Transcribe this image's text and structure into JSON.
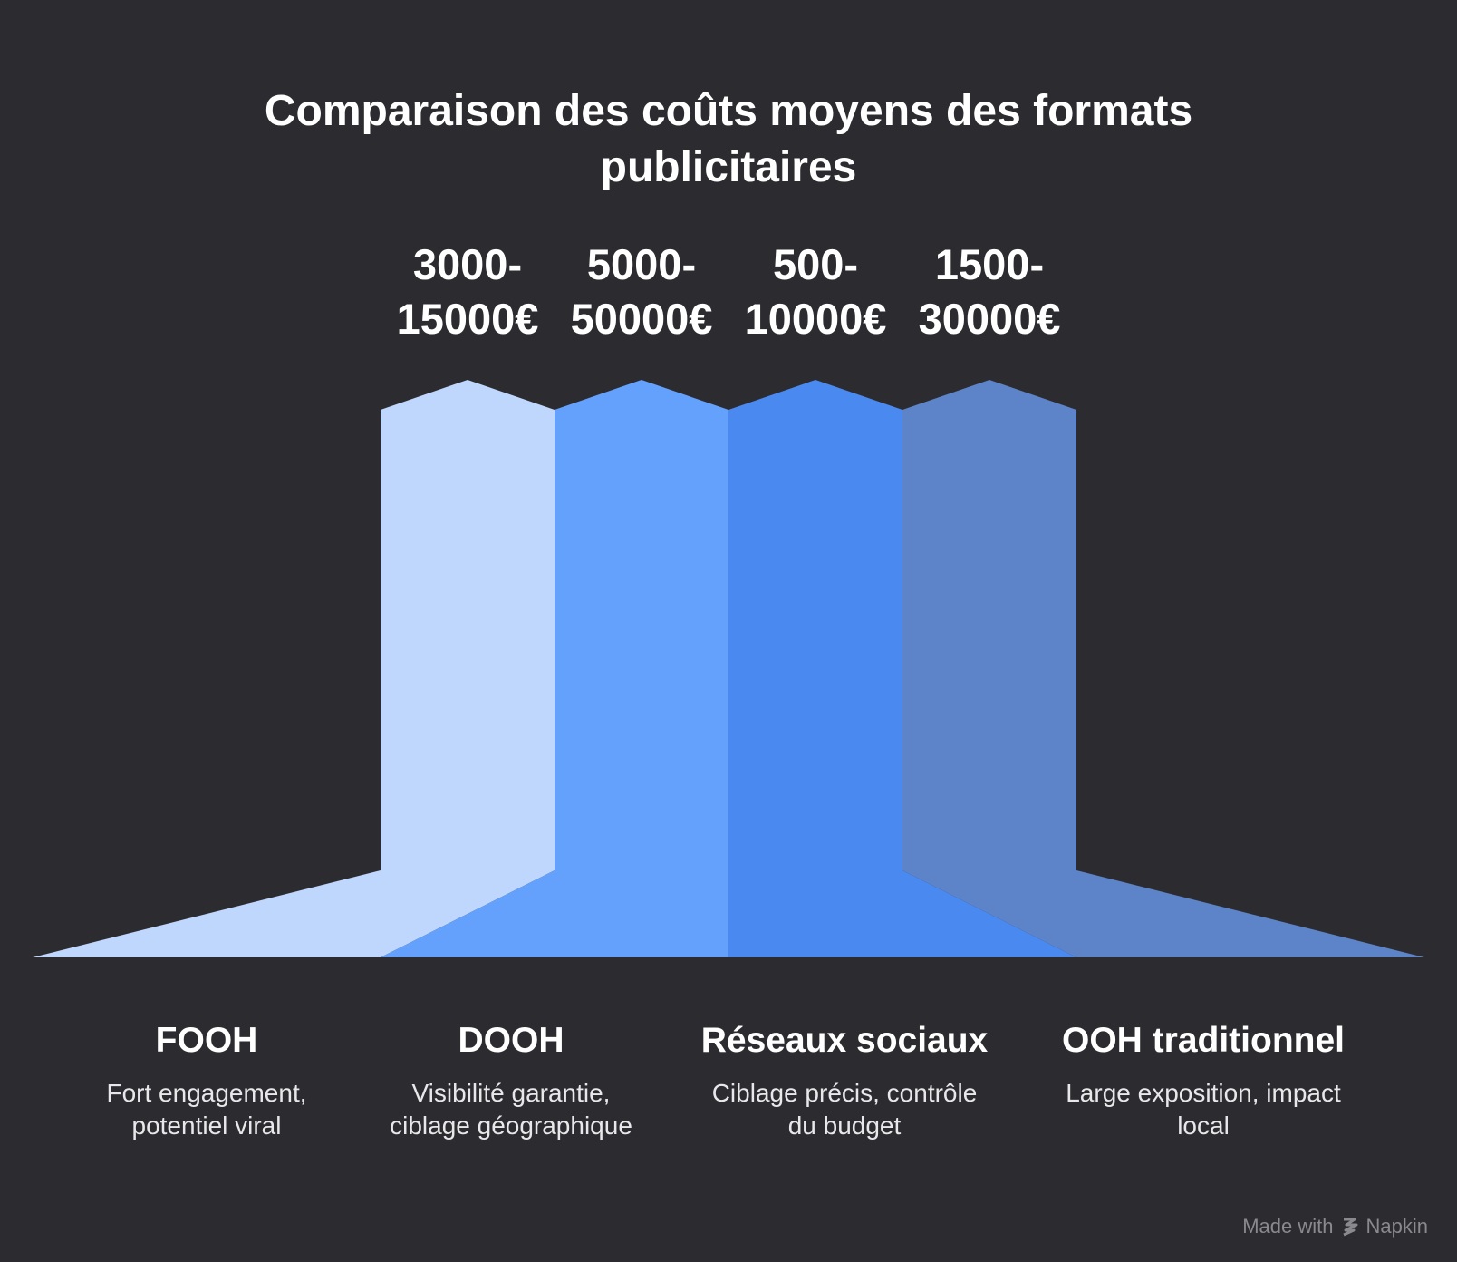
{
  "title": {
    "line1": "Comparaison des coûts moyens des formats",
    "line2": "publicitaires"
  },
  "colors": {
    "background": "#2c2b2f",
    "fooh": "#bfd6fd",
    "dooh": "#64a1fc",
    "reseaux": "#4a8af0",
    "ooh": "#5d83c8"
  },
  "formats": [
    {
      "name": "FOOH",
      "price_line1": "3000-",
      "price_line2": "15000€",
      "desc_line1": "Fort engagement,",
      "desc_line2": "potentiel viral"
    },
    {
      "name": "DOOH",
      "price_line1": "5000-",
      "price_line2": "50000€",
      "desc_line1": "Visibilité garantie,",
      "desc_line2": "ciblage géographique"
    },
    {
      "name": "Réseaux sociaux",
      "price_line1": "500-",
      "price_line2": "10000€",
      "desc_line1": "Ciblage précis, contrôle",
      "desc_line2": "du budget"
    },
    {
      "name": "OOH traditionnel",
      "price_line1": "1500-",
      "price_line2": "30000€",
      "desc_line1": "Large exposition, impact",
      "desc_line2": "local"
    }
  ],
  "footer": {
    "made_with": "Made with",
    "brand": "Napkin",
    "brand_icon": "napkin-logo-icon"
  }
}
